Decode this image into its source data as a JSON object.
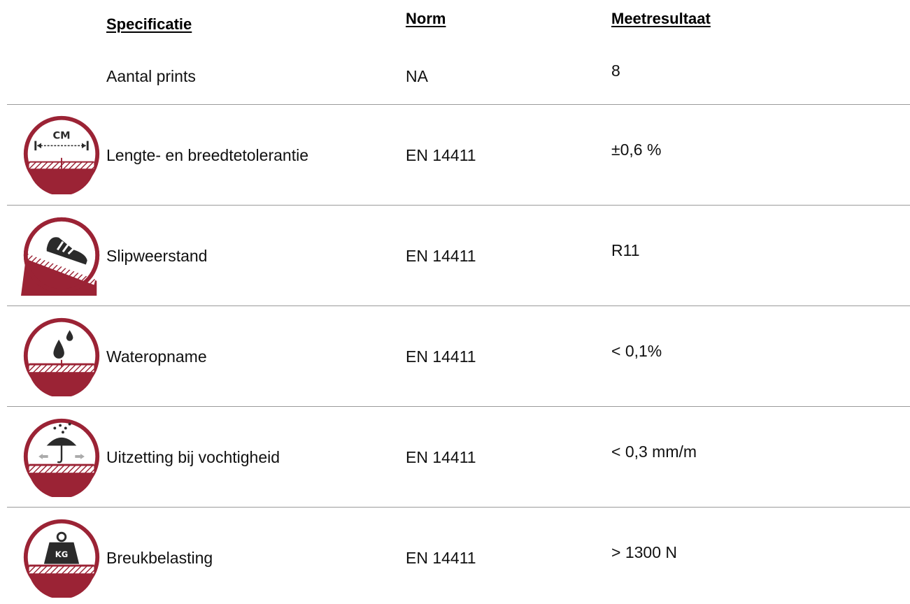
{
  "headers": {
    "specification": "Specificatie",
    "norm": "Norm",
    "result": "Meetresultaat"
  },
  "rows": [
    {
      "icon": "none",
      "specification": "Aantal prints",
      "norm": "NA",
      "result": "8"
    },
    {
      "icon": "length-width-tolerance-icon",
      "icon_text": "CM",
      "specification": "Lengte- en breedtetolerantie",
      "norm": "EN 14411",
      "result": "±0,6 %"
    },
    {
      "icon": "slip-resistance-shoe-icon",
      "specification": "Slipweerstand",
      "norm": "EN 14411",
      "result": "R11"
    },
    {
      "icon": "water-drops-icon",
      "specification": "Wateropname",
      "norm": "EN 14411",
      "result": "< 0,1%"
    },
    {
      "icon": "umbrella-rain-icon",
      "specification": "Uitzetting bij vochtigheid",
      "norm": "EN 14411",
      "result": "< 0,3 mm/m"
    },
    {
      "icon": "kg-weight-icon",
      "icon_text": "KG",
      "specification": "Breukbelasting",
      "norm": "EN 14411",
      "result": "> 1300 N"
    }
  ],
  "colors": {
    "icon_red": "#9b2335",
    "icon_dark": "#2b2b2b",
    "separator": "#9a9a9a"
  }
}
